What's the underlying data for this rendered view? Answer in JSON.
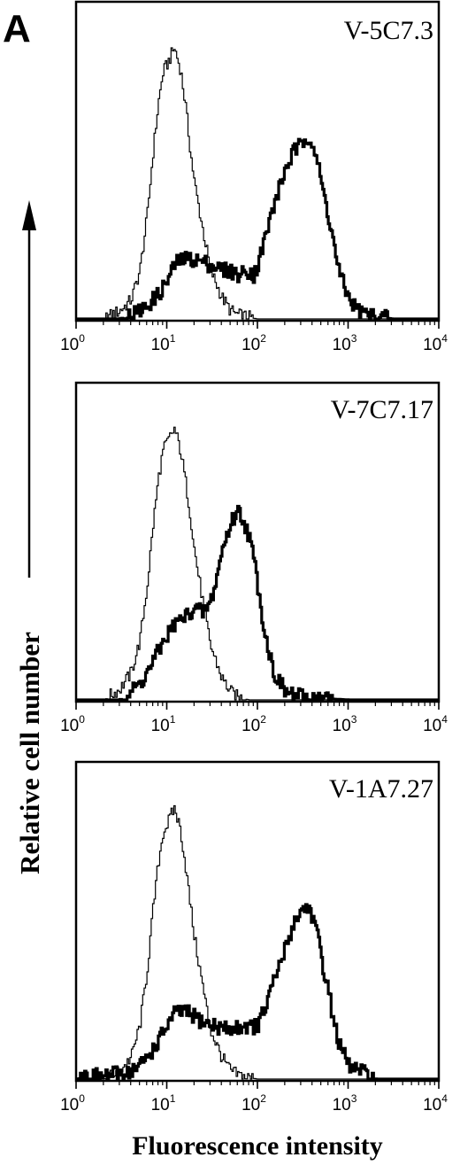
{
  "figure": {
    "panel_label": "A",
    "ylabel": "Relative cell number",
    "xlabel": "Fluorescence intensity",
    "colors": {
      "control": "#000000",
      "stained": "#000000",
      "axes": "#000000"
    }
  },
  "chart_data": [
    {
      "type": "area",
      "title": "V-5C7.3",
      "xlabel": "Fluorescence intensity",
      "ylabel": "Relative cell number",
      "xscale": "log",
      "xlim": [
        1,
        10000
      ],
      "ylim": [
        0,
        100
      ],
      "xticks": [
        {
          "base": "10",
          "exp": "0"
        },
        {
          "base": "10",
          "exp": "1"
        },
        {
          "base": "10",
          "exp": "2"
        },
        {
          "base": "10",
          "exp": "3"
        },
        {
          "base": "10",
          "exp": "4"
        }
      ],
      "series": [
        {
          "style": "thin",
          "x": [
            2,
            3,
            4,
            5,
            6,
            7,
            8,
            9,
            10,
            12,
            14,
            16,
            18,
            20,
            25,
            30,
            40,
            50,
            60,
            80,
            100
          ],
          "y": [
            0,
            3,
            7,
            18,
            38,
            62,
            80,
            91,
            94,
            100,
            92,
            78,
            62,
            50,
            32,
            18,
            8,
            3,
            1.5,
            0.5,
            0
          ]
        },
        {
          "style": "thick",
          "x": [
            3,
            4,
            5,
            6,
            8,
            10,
            12,
            15,
            20,
            25,
            30,
            40,
            50,
            60,
            70,
            80,
            90,
            100,
            120,
            150,
            200,
            250,
            300,
            350,
            400,
            450,
            500,
            600,
            700,
            800,
            1000,
            1200,
            1500,
            2000,
            3000
          ],
          "y": [
            0,
            1.5,
            3,
            5,
            9,
            14,
            20,
            22,
            22,
            21,
            20,
            18,
            18,
            16,
            17,
            18,
            16,
            20,
            30,
            42,
            55,
            62,
            64,
            68,
            65,
            58,
            50,
            38,
            26,
            16,
            8,
            4,
            2,
            1,
            0
          ]
        }
      ]
    },
    {
      "type": "area",
      "title": "V-7C7.17",
      "xlabel": "Fluorescence intensity",
      "ylabel": "Relative cell number",
      "xscale": "log",
      "xlim": [
        1,
        10000
      ],
      "ylim": [
        0,
        100
      ],
      "xticks": [
        {
          "base": "10",
          "exp": "0"
        },
        {
          "base": "10",
          "exp": "1"
        },
        {
          "base": "10",
          "exp": "2"
        },
        {
          "base": "10",
          "exp": "3"
        },
        {
          "base": "10",
          "exp": "4"
        }
      ],
      "series": [
        {
          "style": "thin",
          "x": [
            2,
            3,
            4,
            5,
            6,
            7,
            8,
            9,
            10,
            12,
            14,
            16,
            18,
            20,
            25,
            30,
            40,
            50,
            60,
            80
          ],
          "y": [
            0,
            4,
            10,
            22,
            42,
            65,
            82,
            92,
            95,
            100,
            92,
            80,
            68,
            55,
            35,
            20,
            8,
            3,
            1,
            0
          ]
        },
        {
          "style": "thick",
          "x": [
            3,
            4,
            5,
            6,
            8,
            10,
            12,
            15,
            20,
            25,
            30,
            35,
            40,
            50,
            60,
            70,
            80,
            90,
            100,
            120,
            150,
            200,
            300,
            500,
            1000
          ],
          "y": [
            0,
            3,
            6,
            10,
            18,
            24,
            28,
            30,
            34,
            32,
            36,
            45,
            55,
            65,
            70,
            66,
            60,
            52,
            42,
            24,
            10,
            3,
            1,
            0.5,
            0
          ]
        }
      ]
    },
    {
      "type": "area",
      "title": "V-1A7.27",
      "xlabel": "Fluorescence intensity",
      "ylabel": "Relative cell number",
      "xscale": "log",
      "xlim": [
        1,
        10000
      ],
      "ylim": [
        0,
        100
      ],
      "xticks": [
        {
          "base": "10",
          "exp": "0"
        },
        {
          "base": "10",
          "exp": "1"
        },
        {
          "base": "10",
          "exp": "2"
        },
        {
          "base": "10",
          "exp": "3"
        },
        {
          "base": "10",
          "exp": "4"
        }
      ],
      "series": [
        {
          "style": "thin",
          "x": [
            2,
            3,
            4,
            5,
            6,
            7,
            8,
            9,
            10,
            12,
            14,
            16,
            18,
            20,
            25,
            30,
            40,
            50,
            60,
            80,
            100
          ],
          "y": [
            0,
            3,
            8,
            20,
            40,
            63,
            80,
            91,
            94,
            100,
            92,
            78,
            64,
            52,
            33,
            18,
            8,
            3,
            1.5,
            0.5,
            0
          ]
        },
        {
          "style": "thick",
          "x": [
            2,
            3,
            4,
            5,
            6,
            8,
            10,
            12,
            15,
            20,
            25,
            30,
            40,
            50,
            60,
            70,
            80,
            100,
            120,
            150,
            200,
            250,
            300,
            350,
            400,
            450,
            500,
            600,
            700,
            800,
            1000,
            1500,
            2000
          ],
          "y": [
            1,
            2,
            3,
            5,
            8,
            14,
            20,
            24,
            25,
            23,
            21,
            20,
            19,
            18,
            19,
            20,
            19,
            20,
            26,
            36,
            48,
            58,
            62,
            64,
            60,
            53,
            45,
            32,
            20,
            12,
            5,
            2,
            0
          ]
        }
      ]
    }
  ]
}
